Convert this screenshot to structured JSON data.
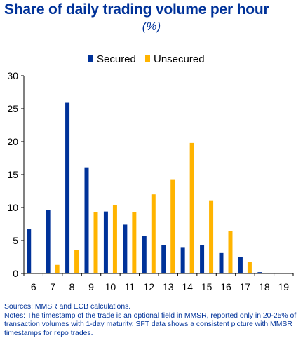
{
  "title": "Share of daily trading volume per hour",
  "subtitle": "(%)",
  "colors": {
    "secured": "#003299",
    "unsecured": "#FFB400",
    "text": "#003299",
    "axis": "#000000",
    "grid": "#d9d9d9"
  },
  "chart_data": {
    "type": "bar",
    "categories": [
      "6",
      "7",
      "8",
      "9",
      "10",
      "11",
      "12",
      "13",
      "14",
      "15",
      "16",
      "17",
      "18",
      "19"
    ],
    "series": [
      {
        "name": "Secured",
        "values": [
          6.7,
          9.6,
          25.9,
          16.1,
          9.4,
          7.4,
          5.7,
          4.3,
          4.0,
          4.3,
          3.1,
          2.5,
          0.2,
          0
        ]
      },
      {
        "name": "Unsecured",
        "values": [
          0,
          1.3,
          3.6,
          9.3,
          10.4,
          9.3,
          12.0,
          14.3,
          19.8,
          11.1,
          6.4,
          1.8,
          0,
          0
        ]
      }
    ],
    "ylim": [
      0,
      30
    ],
    "yticks": [
      0,
      5,
      10,
      15,
      20,
      25,
      30
    ],
    "legend": "top",
    "grid": false
  },
  "notes": {
    "sources": "Sources: MMSR and ECB calculations.",
    "line1": "Notes: The timestamp of the trade is an optional field in MMSR, reported only in 20-25% of",
    "line2": "transaction volumes with 1-day maturity. SFT data shows a consistent picture with MMSR",
    "line3": "timestamps for repo trades."
  }
}
